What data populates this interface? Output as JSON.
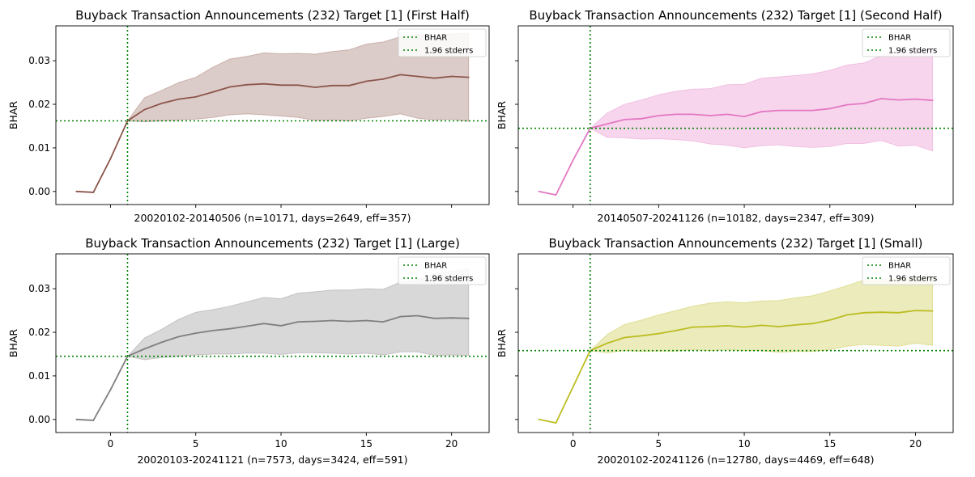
{
  "chart_data": [
    {
      "type": "line",
      "title": "Buyback Transaction Announcements (232) Target [1] (First Half)",
      "xlabel": "20020102-20140506 (n=10171, days=2649, eff=357)",
      "ylabel": "BHAR",
      "color": "#8c564b",
      "x": [
        -2,
        -1,
        0,
        1,
        2,
        3,
        4,
        5,
        6,
        7,
        8,
        9,
        10,
        11,
        12,
        13,
        14,
        15,
        16,
        17,
        18,
        19,
        20,
        21
      ],
      "y": [
        0.0,
        -0.0002,
        0.0075,
        0.0162,
        0.0188,
        0.0202,
        0.0212,
        0.0217,
        0.0228,
        0.024,
        0.0245,
        0.0247,
        0.0244,
        0.0244,
        0.0239,
        0.0243,
        0.0243,
        0.0253,
        0.0258,
        0.0268,
        0.0264,
        0.026,
        0.0264,
        0.0262
      ],
      "band_upper": [
        null,
        null,
        null,
        0.0162,
        0.0215,
        0.0232,
        0.025,
        0.0262,
        0.0285,
        0.0304,
        0.031,
        0.0318,
        0.0316,
        0.0317,
        0.0315,
        0.0321,
        0.0325,
        0.0338,
        0.0343,
        0.0355,
        0.036,
        0.0357,
        0.0362,
        0.0363
      ],
      "band_lower": [
        null,
        null,
        null,
        0.0162,
        0.016,
        0.0162,
        0.0164,
        0.0166,
        0.017,
        0.0176,
        0.0178,
        0.0176,
        0.0173,
        0.017,
        0.0163,
        0.0164,
        0.0162,
        0.0168,
        0.0172,
        0.0178,
        0.0168,
        0.0164,
        0.0166,
        0.0161
      ],
      "hline": 0.0162,
      "vline": 1,
      "ylim": [
        -0.003,
        0.038
      ],
      "xlim": [
        -3.2,
        22.2
      ],
      "yticks": [
        0.0,
        0.01,
        0.02,
        0.03
      ],
      "ytick_labels": [
        "0.00",
        "0.01",
        "0.02",
        "0.03"
      ],
      "xticks": [
        0,
        5,
        10,
        15,
        20
      ],
      "xtick_labels": [],
      "legend": [
        "BHAR",
        "1.96 stderrs"
      ],
      "legend_position": "top-right",
      "grid": false
    },
    {
      "type": "line",
      "title": "Buyback Transaction Announcements (232) Target [1] (Second Half)",
      "xlabel": "20140507-20241126 (n=10182, days=2347, eff=309)",
      "ylabel": "BHAR",
      "color": "#e377c2",
      "x": [
        -2,
        -1,
        0,
        1,
        2,
        3,
        4,
        5,
        6,
        7,
        8,
        9,
        10,
        11,
        12,
        13,
        14,
        15,
        16,
        17,
        18,
        19,
        20,
        21
      ],
      "y": [
        0.0,
        -0.0008,
        0.0072,
        0.0145,
        0.0155,
        0.0165,
        0.0167,
        0.0174,
        0.0177,
        0.0177,
        0.0174,
        0.0177,
        0.0172,
        0.0183,
        0.0186,
        0.0186,
        0.0186,
        0.019,
        0.0199,
        0.0202,
        0.0213,
        0.021,
        0.0212,
        0.0209
      ],
      "band_upper": [
        null,
        null,
        null,
        0.0145,
        0.018,
        0.02,
        0.021,
        0.0222,
        0.023,
        0.0235,
        0.0236,
        0.0245,
        0.0246,
        0.026,
        0.0263,
        0.0266,
        0.027,
        0.0278,
        0.029,
        0.0295,
        0.0312,
        0.032,
        0.0325,
        0.0328
      ],
      "band_lower": [
        null,
        null,
        null,
        0.0145,
        0.0124,
        0.0123,
        0.012,
        0.0121,
        0.0119,
        0.0116,
        0.0109,
        0.0106,
        0.01,
        0.0105,
        0.0107,
        0.0103,
        0.0101,
        0.0103,
        0.011,
        0.011,
        0.0117,
        0.0104,
        0.0106,
        0.0093
      ],
      "hline": 0.0145,
      "vline": 1,
      "ylim": [
        -0.003,
        0.038
      ],
      "xlim": [
        -3.2,
        22.2
      ],
      "yticks": [
        0.0,
        0.01,
        0.02,
        0.03
      ],
      "ytick_labels": [],
      "xticks": [
        0,
        5,
        10,
        15,
        20
      ],
      "xtick_labels": [],
      "legend": [
        "BHAR",
        "1.96 stderrs"
      ],
      "legend_position": "top-right",
      "grid": false
    },
    {
      "type": "line",
      "title": "Buyback Transaction Announcements (232) Target [1] (Large)",
      "xlabel": "20020103-20241121 (n=7573, days=3424, eff=591)",
      "ylabel": "BHAR",
      "color": "#7f7f7f",
      "x": [
        -2,
        -1,
        0,
        1,
        2,
        3,
        4,
        5,
        6,
        7,
        8,
        9,
        10,
        11,
        12,
        13,
        14,
        15,
        16,
        17,
        18,
        19,
        20,
        21
      ],
      "y": [
        0.0,
        -0.0002,
        0.0068,
        0.0145,
        0.0162,
        0.0177,
        0.019,
        0.0198,
        0.0204,
        0.0208,
        0.0214,
        0.022,
        0.0215,
        0.0224,
        0.0225,
        0.0227,
        0.0225,
        0.0227,
        0.0224,
        0.0236,
        0.0238,
        0.0232,
        0.0233,
        0.0232
      ],
      "band_upper": [
        null,
        null,
        null,
        0.0145,
        0.0187,
        0.0207,
        0.023,
        0.0246,
        0.0252,
        0.026,
        0.027,
        0.028,
        0.0277,
        0.029,
        0.0293,
        0.0297,
        0.0297,
        0.03,
        0.0299,
        0.0315,
        0.032,
        0.0335,
        0.034,
        0.0345
      ],
      "band_lower": [
        null,
        null,
        null,
        0.0145,
        0.0137,
        0.0142,
        0.0145,
        0.0148,
        0.015,
        0.015,
        0.0152,
        0.0152,
        0.0149,
        0.0153,
        0.0153,
        0.0152,
        0.015,
        0.0152,
        0.0148,
        0.0155,
        0.0155,
        0.0147,
        0.0148,
        0.0147
      ],
      "hline": 0.0145,
      "vline": 1,
      "ylim": [
        -0.003,
        0.038
      ],
      "xlim": [
        -3.2,
        22.2
      ],
      "yticks": [
        0.0,
        0.01,
        0.02,
        0.03
      ],
      "ytick_labels": [
        "0.00",
        "0.01",
        "0.02",
        "0.03"
      ],
      "xticks": [
        0,
        5,
        10,
        15,
        20
      ],
      "xtick_labels": [
        "0",
        "5",
        "10",
        "15",
        "20"
      ],
      "legend": [
        "BHAR",
        "1.96 stderrs"
      ],
      "legend_position": "top-right",
      "grid": false
    },
    {
      "type": "line",
      "title": "Buyback Transaction Announcements (232) Target [1] (Small)",
      "xlabel": "20020102-20241126 (n=12780, days=4469, eff=648)",
      "ylabel": "BHAR",
      "color": "#bcbd22",
      "x": [
        -2,
        -1,
        0,
        1,
        2,
        3,
        4,
        5,
        6,
        7,
        8,
        9,
        10,
        11,
        12,
        13,
        14,
        15,
        16,
        17,
        18,
        19,
        20,
        21
      ],
      "y": [
        0.0,
        -0.0008,
        0.0075,
        0.0158,
        0.0175,
        0.0188,
        0.0192,
        0.0197,
        0.0204,
        0.0212,
        0.0213,
        0.0215,
        0.0212,
        0.0216,
        0.0213,
        0.0217,
        0.022,
        0.0228,
        0.024,
        0.0245,
        0.0246,
        0.0245,
        0.025,
        0.0249
      ],
      "band_upper": [
        null,
        null,
        null,
        0.0158,
        0.0195,
        0.0218,
        0.0228,
        0.024,
        0.025,
        0.026,
        0.0267,
        0.027,
        0.0268,
        0.0272,
        0.0273,
        0.0279,
        0.0284,
        0.0295,
        0.0307,
        0.032,
        0.032,
        0.0322,
        0.0325,
        0.0326
      ],
      "band_lower": [
        null,
        null,
        null,
        0.0158,
        0.0153,
        0.0158,
        0.0156,
        0.0157,
        0.0157,
        0.016,
        0.0158,
        0.016,
        0.0158,
        0.0158,
        0.0154,
        0.0156,
        0.0156,
        0.016,
        0.0168,
        0.0172,
        0.017,
        0.0168,
        0.0175,
        0.017
      ],
      "hline": 0.0158,
      "vline": 1,
      "ylim": [
        -0.003,
        0.038
      ],
      "xlim": [
        -3.2,
        22.2
      ],
      "yticks": [
        0.0,
        0.01,
        0.02,
        0.03
      ],
      "ytick_labels": [],
      "xticks": [
        0,
        5,
        10,
        15,
        20
      ],
      "xtick_labels": [
        "0",
        "5",
        "10",
        "15",
        "20"
      ],
      "legend": [
        "BHAR",
        "1.96 stderrs"
      ],
      "legend_position": "top-right",
      "grid": false
    }
  ]
}
